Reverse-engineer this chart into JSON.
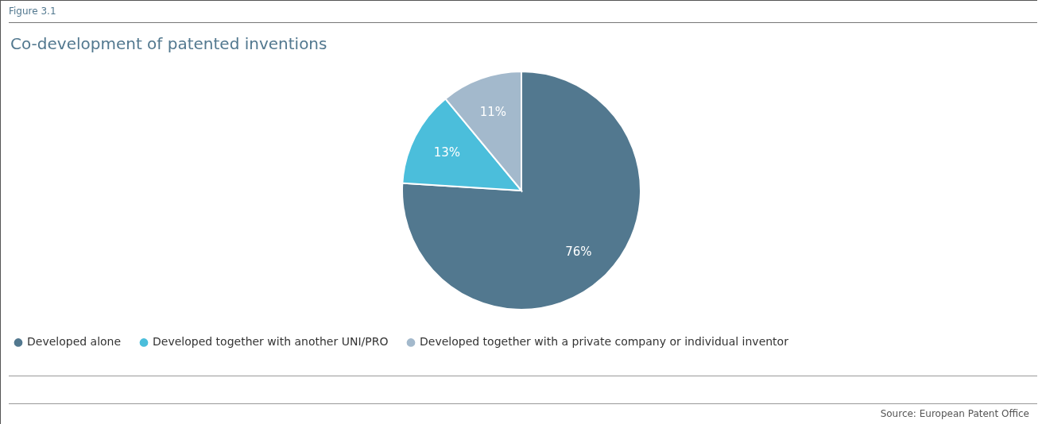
{
  "chart_data": {
    "type": "pie",
    "title": "Co-development of patented inventions",
    "categories": [
      "Developed alone",
      "Developed together with another UNI/PRO",
      "Developed together with a private company or individual inventor"
    ],
    "values": [
      76,
      13,
      11
    ],
    "colors": [
      "#52788f",
      "#4bbedb",
      "#a3b9cc"
    ],
    "value_labels": [
      "76%",
      "13%",
      "11%"
    ],
    "legend": "bottom",
    "annotations": [
      "Figure 3.1",
      "Source: European Patent Office"
    ]
  }
}
